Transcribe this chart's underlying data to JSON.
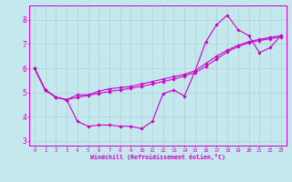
{
  "xlabel": "Windchill (Refroidissement éolien,°C)",
  "bg_color": "#c5e8ee",
  "line_color": "#cc00cc",
  "grid_color": "#aad4d8",
  "xlim": [
    -0.5,
    23.5
  ],
  "ylim": [
    2.8,
    8.6
  ],
  "yticks": [
    3,
    4,
    5,
    6,
    7,
    8
  ],
  "xticks": [
    0,
    1,
    2,
    3,
    4,
    5,
    6,
    7,
    8,
    9,
    10,
    11,
    12,
    13,
    14,
    15,
    16,
    17,
    18,
    19,
    20,
    21,
    22,
    23
  ],
  "line1": [
    6.0,
    5.1,
    4.8,
    4.7,
    3.8,
    3.6,
    3.65,
    3.65,
    3.6,
    3.6,
    3.5,
    3.8,
    4.95,
    5.1,
    4.85,
    5.9,
    7.1,
    7.8,
    8.2,
    7.6,
    7.35,
    6.65,
    6.85,
    7.35
  ],
  "line2": [
    6.0,
    5.1,
    4.8,
    4.7,
    4.9,
    4.9,
    5.05,
    5.15,
    5.2,
    5.25,
    5.35,
    5.45,
    5.55,
    5.65,
    5.75,
    5.9,
    6.2,
    6.5,
    6.75,
    6.95,
    7.1,
    7.2,
    7.28,
    7.35
  ],
  "line3": [
    6.0,
    5.1,
    4.8,
    4.7,
    4.8,
    4.88,
    4.96,
    5.04,
    5.1,
    5.18,
    5.25,
    5.35,
    5.45,
    5.55,
    5.68,
    5.82,
    6.08,
    6.38,
    6.68,
    6.9,
    7.05,
    7.15,
    7.22,
    7.3
  ]
}
